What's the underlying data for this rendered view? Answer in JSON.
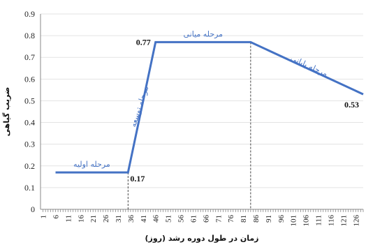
{
  "chart_data": {
    "type": "line",
    "xlabel": "زمان در طول دوره رشد (روز)",
    "ylabel": "ضریب گیاهی",
    "ylim": [
      0,
      0.9
    ],
    "yticks": [
      "0",
      "0.1",
      "0.2",
      "0.3",
      "0.4",
      "0.5",
      "0.6",
      "0.7",
      "0.8",
      "0.9"
    ],
    "xlim": [
      0,
      129
    ],
    "xticks": [
      "1",
      "6",
      "11",
      "16",
      "21",
      "26",
      "31",
      "36",
      "41",
      "46",
      "51",
      "56",
      "61",
      "66",
      "71",
      "76",
      "81",
      "86",
      "91",
      "96",
      "101",
      "106",
      "111",
      "116",
      "121",
      "126"
    ],
    "series": [
      {
        "x": [
          6,
          35,
          46,
          84,
          129
        ],
        "y": [
          0.17,
          0.17,
          0.77,
          0.77,
          0.53
        ]
      }
    ],
    "line_color": "#4472c4",
    "vertical_markers": [
      35,
      84
    ],
    "stage_labels": [
      {
        "text": "مرحله اولیه",
        "x": 20.5,
        "y": 0.17
      },
      {
        "text": "مرحله توسعه",
        "x": 40.5,
        "y": 0.47
      },
      {
        "text": "مرحله میانی",
        "x": 65,
        "y": 0.77
      },
      {
        "text": "مرحله پایانی",
        "x": 107,
        "y": 0.65
      }
    ],
    "point_labels": [
      {
        "text": "0.17",
        "x": 35,
        "y": 0.17
      },
      {
        "text": "0.77",
        "x": 46,
        "y": 0.77
      },
      {
        "text": "0.53",
        "x": 129,
        "y": 0.53
      }
    ]
  }
}
